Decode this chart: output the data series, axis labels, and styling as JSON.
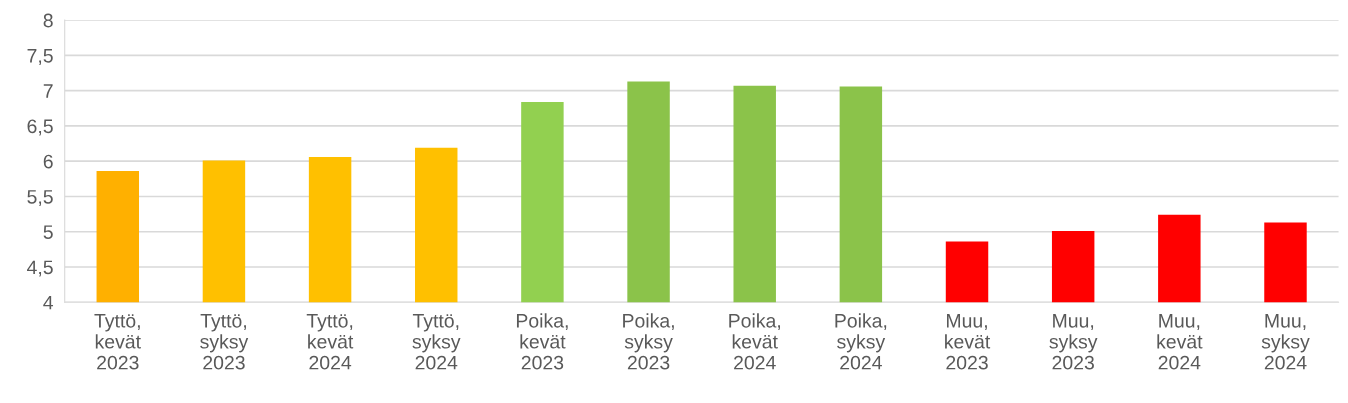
{
  "chart_data": {
    "type": "bar",
    "categories": [
      "Tyttö,\nkevät\n2023",
      "Tyttö,\nsyksy\n2023",
      "Tyttö,\nkevät\n2024",
      "Tyttö,\nsyksy\n2024",
      "Poika,\nkevät\n2023",
      "Poika,\nsyksy\n2023",
      "Poika,\nkevät\n2024",
      "Poika,\nsyksy\n2024",
      "Muu,\nkevät\n2023",
      "Muu,\nsyksy\n2023",
      "Muu,\nkevät\n2024",
      "Muu,\nsyksy\n2024"
    ],
    "values": [
      5.86,
      6.01,
      6.06,
      6.19,
      6.84,
      7.13,
      7.07,
      7.06,
      4.86,
      5.01,
      5.24,
      5.13
    ],
    "colors": [
      "#ffb000",
      "#ffc000",
      "#ffc000",
      "#ffc000",
      "#92d050",
      "#8bc34a",
      "#8bc34a",
      "#8bc34a",
      "#ff0000",
      "#ff0000",
      "#ff0000",
      "#ff0000"
    ],
    "ylim": [
      4,
      8
    ],
    "yticks": [
      4,
      {
        "value": 4.5,
        "label": "4,5"
      },
      5,
      {
        "value": 5.5,
        "label": "5,5"
      },
      6,
      {
        "value": 6.5,
        "label": "6,5"
      },
      7,
      {
        "value": 7.5,
        "label": "7,5"
      },
      8
    ],
    "grid": "y"
  }
}
